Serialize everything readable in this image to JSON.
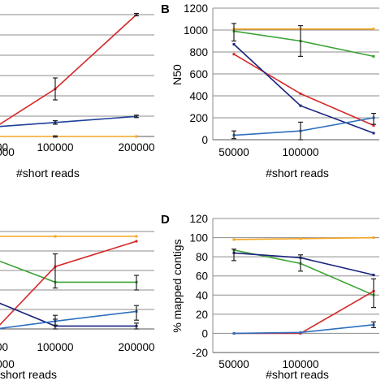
{
  "chart_data": [
    {
      "panel": "A",
      "type": "line",
      "panel_label": "",
      "title": "",
      "xlabel": "#short reads",
      "ylabel": "",
      "x_tick_labels": [
        "00",
        "100000",
        "200000"
      ],
      "y_tick_labels": [],
      "grid": true,
      "series": [
        {
          "color": "#d62728",
          "x": [
            0,
            100000,
            200000
          ],
          "y": [
            0.08,
            0.39,
            1.0
          ]
        },
        {
          "color": "#1f3f99",
          "x": [
            0,
            100000,
            200000
          ],
          "y": [
            0.08,
            0.115,
            0.165
          ]
        },
        {
          "color": "#f5a623",
          "x": [
            0,
            100000,
            200000
          ],
          "y": [
            0.0,
            0.0,
            0.0
          ]
        }
      ],
      "error_bars": [
        {
          "x": 100000,
          "low": 0.3,
          "high": 0.48
        },
        {
          "x": 100000,
          "low": 0.1,
          "high": 0.13
        },
        {
          "x": 200000,
          "low": 0.155,
          "high": 0.175
        },
        {
          "x": 200000,
          "low": 0.99,
          "high": 1.01
        },
        {
          "x": 100000,
          "low": -0.005,
          "high": 0.005
        }
      ]
    },
    {
      "panel": "B",
      "type": "line",
      "panel_label": "B",
      "title": "",
      "xlabel": "#short reads",
      "ylabel": "N50",
      "categories": [
        "20000",
        "50000",
        "100000"
      ],
      "y_tick_labels": [
        "0",
        "200",
        "400",
        "600",
        "800",
        "1000",
        "1200"
      ],
      "ylim": [
        0,
        1200
      ],
      "grid": true,
      "series": [
        {
          "color": "#f5a623",
          "x": [
            20000,
            50000,
            100000
          ],
          "y": [
            1010,
            1010,
            1010
          ]
        },
        {
          "color": "#3aa335",
          "x": [
            20000,
            50000,
            100000
          ],
          "y": [
            990,
            900,
            760
          ]
        },
        {
          "color": "#d62728",
          "x": [
            20000,
            50000,
            100000
          ],
          "y": [
            780,
            420,
            130
          ]
        },
        {
          "color": "#1a237e",
          "x": [
            20000,
            50000,
            100000
          ],
          "y": [
            870,
            310,
            60
          ]
        },
        {
          "color": "#2e6fbd",
          "x": [
            20000,
            50000,
            100000
          ],
          "y": [
            40,
            80,
            200
          ]
        }
      ],
      "error_bars": [
        {
          "x": 20000,
          "low": 900,
          "high": 1060
        },
        {
          "x": 50000,
          "low": 760,
          "high": 1040
        },
        {
          "x": 50000,
          "low": 0,
          "high": 160
        },
        {
          "x": 100000,
          "low": 140,
          "high": 240
        },
        {
          "x": 20000,
          "low": 10,
          "high": 80
        }
      ]
    },
    {
      "panel": "C",
      "type": "line",
      "panel_label": "",
      "title": "",
      "xlabel": "short reads",
      "ylabel": "",
      "x_tick_labels": [
        "00",
        "100000",
        "200000"
      ],
      "y_tick_labels": [],
      "grid": true,
      "series": [
        {
          "color": "#f5a623",
          "x": [
            0,
            100000,
            200000
          ],
          "y": [
            0.95,
            0.95,
            0.95
          ]
        },
        {
          "color": "#3aa335",
          "x": [
            0,
            100000,
            200000
          ],
          "y": [
            0.71,
            0.48,
            0.48
          ]
        },
        {
          "color": "#d62728",
          "x": [
            0,
            100000,
            200000
          ],
          "y": [
            0.0,
            0.64,
            0.9
          ]
        },
        {
          "color": "#1a237e",
          "x": [
            0,
            100000,
            200000
          ],
          "y": [
            0.28,
            0.03,
            0.03
          ]
        },
        {
          "color": "#2e6fbd",
          "x": [
            0,
            100000,
            200000
          ],
          "y": [
            0.0,
            0.08,
            0.18
          ]
        }
      ],
      "error_bars": [
        {
          "x": 100000,
          "low": 0.42,
          "high": 0.77
        },
        {
          "x": 200000,
          "low": 0.4,
          "high": 0.55
        },
        {
          "x": 100000,
          "low": 0.0,
          "high": 0.1
        },
        {
          "x": 200000,
          "low": 0.0,
          "high": 0.06
        },
        {
          "x": 200000,
          "low": 0.09,
          "high": 0.24
        },
        {
          "x": 100000,
          "low": 0.04,
          "high": 0.14
        }
      ]
    },
    {
      "panel": "D",
      "type": "line",
      "panel_label": "D",
      "title": "",
      "xlabel": "#short reads",
      "ylabel": "% mapped contigs",
      "categories": [
        "20000",
        "50000",
        "100000"
      ],
      "y_tick_labels": [
        "-20",
        "0",
        "20",
        "40",
        "60",
        "80",
        "100",
        "120"
      ],
      "ylim": [
        -20,
        120
      ],
      "grid": true,
      "series": [
        {
          "color": "#f5a623",
          "x": [
            20000,
            50000,
            100000
          ],
          "y": [
            98,
            99,
            100
          ]
        },
        {
          "color": "#3aa335",
          "x": [
            20000,
            50000,
            100000
          ],
          "y": [
            87,
            73,
            40
          ]
        },
        {
          "color": "#1a237e",
          "x": [
            20000,
            50000,
            100000
          ],
          "y": [
            84,
            79,
            61
          ]
        },
        {
          "color": "#d62728",
          "x": [
            20000,
            50000,
            100000
          ],
          "y": [
            0,
            0,
            44
          ]
        },
        {
          "color": "#2e6fbd",
          "x": [
            20000,
            50000,
            100000
          ],
          "y": [
            0,
            1,
            9
          ]
        }
      ],
      "error_bars": [
        {
          "x": 20000,
          "low": 76,
          "high": 88
        },
        {
          "x": 50000,
          "low": 65,
          "high": 82
        },
        {
          "x": 100000,
          "low": 27,
          "high": 57
        },
        {
          "x": 100000,
          "low": 6,
          "high": 12
        }
      ]
    }
  ]
}
